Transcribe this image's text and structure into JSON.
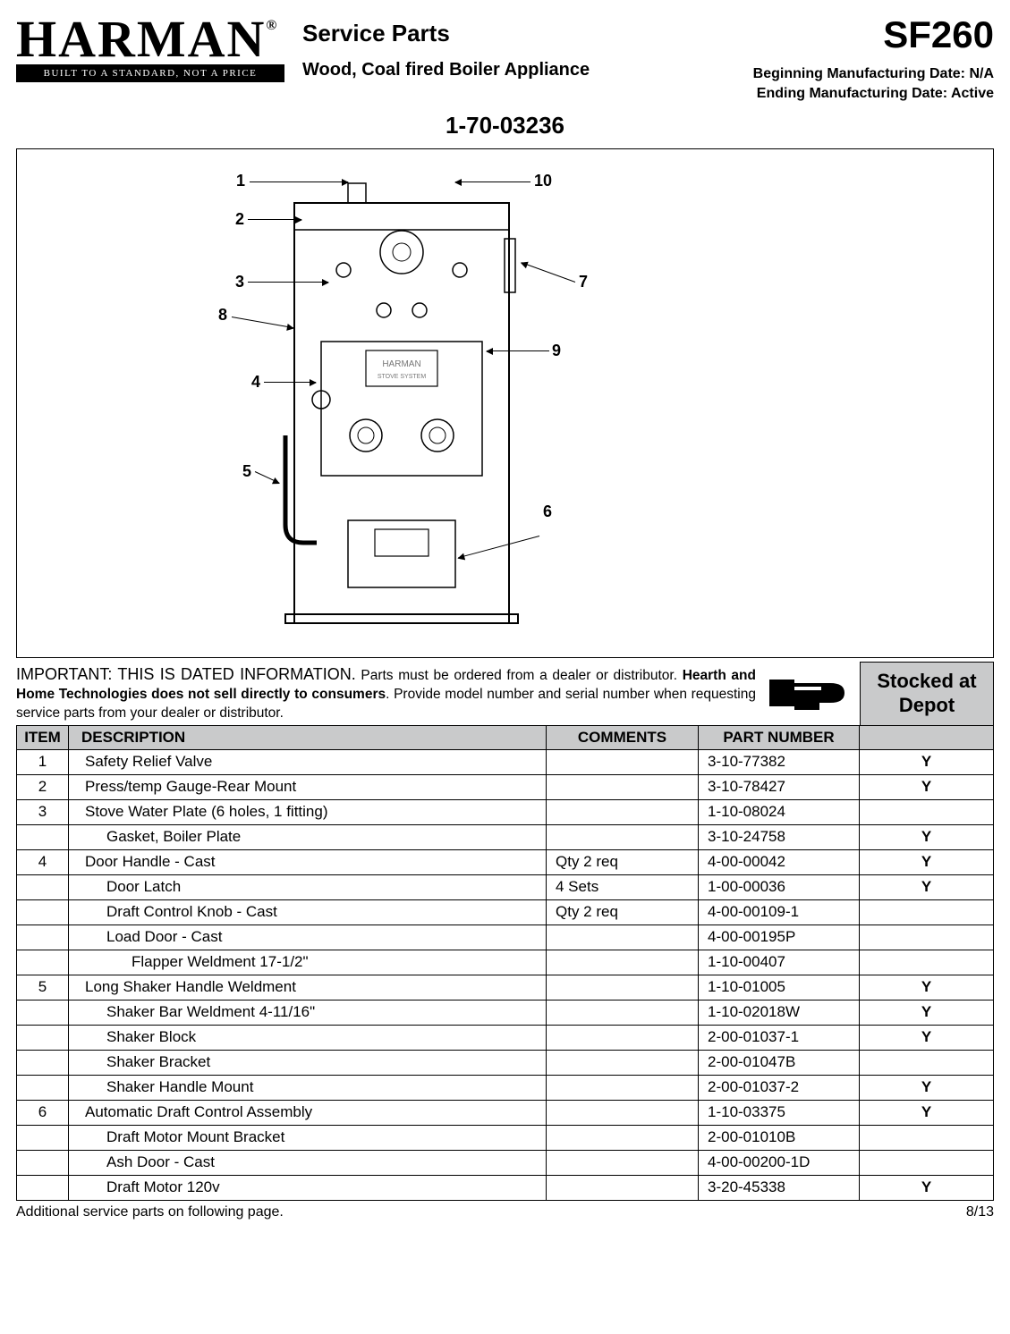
{
  "logo": {
    "name": "HARMAN",
    "reg": "®",
    "tagline": "BUILT TO A STANDARD, NOT A PRICE"
  },
  "header": {
    "service_parts": "Service Parts",
    "subtitle": "Wood, Coal fired Boiler Appliance",
    "model": "SF260",
    "mfg_begin": "Beginning Manufacturing Date: N/A",
    "mfg_end": "Ending Manufacturing Date: Active",
    "part_code": "1-70-03236"
  },
  "callouts": [
    "1",
    "2",
    "3",
    "4",
    "5",
    "6",
    "7",
    "8",
    "9",
    "10"
  ],
  "important": {
    "lead": "IMPORTANT: THIS IS DATED INFORMATION.",
    "body1": " Parts must be ordered from a dealer or distributor. ",
    "bold": "Hearth and Home Technologies does not sell directly to consumers",
    "body2": ". Provide model number and serial number when requesting service parts from your dealer or distributor."
  },
  "stocked_label": "Stocked at Depot",
  "columns": {
    "item": "ITEM",
    "desc": "DESCRIPTION",
    "comm": "COMMENTS",
    "part": "PART NUMBER",
    "stock": ""
  },
  "rows": [
    {
      "item": "1",
      "desc": "Safety Relief Valve",
      "indent": 0,
      "comm": "",
      "part": "3-10-77382",
      "stock": "Y"
    },
    {
      "item": "2",
      "desc": "Press/temp Gauge-Rear Mount",
      "indent": 0,
      "comm": "",
      "part": "3-10-78427",
      "stock": "Y"
    },
    {
      "item": "3",
      "desc": "Stove Water Plate (6 holes, 1 fitting)",
      "indent": 0,
      "comm": "",
      "part": "1-10-08024",
      "stock": ""
    },
    {
      "item": "",
      "desc": "Gasket, Boiler Plate",
      "indent": 1,
      "comm": "",
      "part": "3-10-24758",
      "stock": "Y"
    },
    {
      "item": "4",
      "desc": "Door Handle - Cast",
      "indent": 0,
      "comm": "Qty 2 req",
      "part": "4-00-00042",
      "stock": "Y"
    },
    {
      "item": "",
      "desc": "Door Latch",
      "indent": 1,
      "comm": "4 Sets",
      "part": "1-00-00036",
      "stock": "Y"
    },
    {
      "item": "",
      "desc": "Draft Control Knob - Cast",
      "indent": 1,
      "comm": "Qty 2 req",
      "part": "4-00-00109-1",
      "stock": ""
    },
    {
      "item": "",
      "desc": "Load Door - Cast",
      "indent": 1,
      "comm": "",
      "part": "4-00-00195P",
      "stock": ""
    },
    {
      "item": "",
      "desc": "Flapper Weldment 17-1/2\"",
      "indent": 2,
      "comm": "",
      "part": "1-10-00407",
      "stock": ""
    },
    {
      "item": "5",
      "desc": "Long Shaker Handle Weldment",
      "indent": 0,
      "comm": "",
      "part": "1-10-01005",
      "stock": "Y"
    },
    {
      "item": "",
      "desc": "Shaker Bar Weldment 4-11/16\"",
      "indent": 1,
      "comm": "",
      "part": "1-10-02018W",
      "stock": "Y"
    },
    {
      "item": "",
      "desc": "Shaker Block",
      "indent": 1,
      "comm": "",
      "part": "2-00-01037-1",
      "stock": "Y"
    },
    {
      "item": "",
      "desc": "Shaker Bracket",
      "indent": 1,
      "comm": "",
      "part": "2-00-01047B",
      "stock": ""
    },
    {
      "item": "",
      "desc": "Shaker Handle Mount",
      "indent": 1,
      "comm": "",
      "part": "2-00-01037-2",
      "stock": "Y"
    },
    {
      "item": "6",
      "desc": "Automatic Draft Control Assembly",
      "indent": 0,
      "comm": "",
      "part": "1-10-03375",
      "stock": "Y"
    },
    {
      "item": "",
      "desc": "Draft Motor Mount Bracket",
      "indent": 1,
      "comm": "",
      "part": "2-00-01010B",
      "stock": ""
    },
    {
      "item": "",
      "desc": "Ash Door - Cast",
      "indent": 1,
      "comm": "",
      "part": "4-00-00200-1D",
      "stock": ""
    },
    {
      "item": "",
      "desc": "Draft Motor 120v",
      "indent": 1,
      "comm": "",
      "part": "3-20-45338",
      "stock": "Y"
    }
  ],
  "footer": {
    "left": "Additional service parts on following page.",
    "right": "8/13"
  },
  "colors": {
    "header_bg": "#c9cacb",
    "border": "#000000",
    "text": "#000000"
  }
}
